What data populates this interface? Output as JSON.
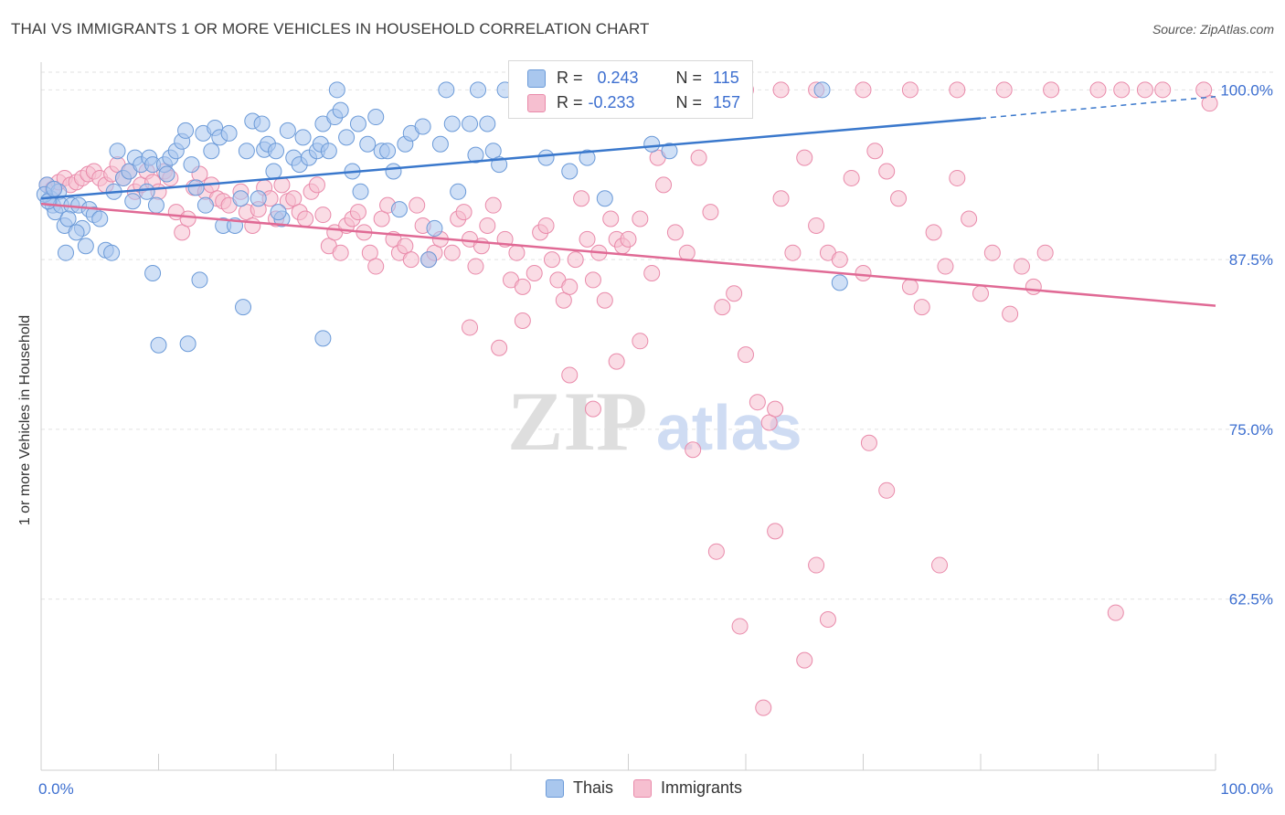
{
  "title": "THAI VS IMMIGRANTS 1 OR MORE VEHICLES IN HOUSEHOLD CORRELATION CHART",
  "source": "Source: ZipAtlas.com",
  "watermark": {
    "zip": "ZIP",
    "atlas": "atlas"
  },
  "colors": {
    "thais_fill": "#a9c7ee",
    "thais_stroke": "#6b9ad8",
    "thais_line": "#3a78cc",
    "imm_fill": "#f6bfd0",
    "imm_stroke": "#e98aaa",
    "imm_line": "#e06a95",
    "axis_text": "#3d6fd0",
    "grid": "#e2e2e2"
  },
  "legend": {
    "r_label": "R =",
    "n_label": "N =",
    "thais": {
      "r": "0.243",
      "n": "115"
    },
    "immigrants": {
      "r": "-0.233",
      "n": "157"
    }
  },
  "bottom_legend": [
    "Thais",
    "Immigrants"
  ],
  "chart_data": {
    "type": "scatter",
    "xlabel": "",
    "ylabel": "1 or more Vehicles in Household",
    "xlim": [
      0,
      100
    ],
    "ylim": [
      49.9,
      101.3
    ],
    "x_tick_labels": [
      "0.0%",
      "100.0%"
    ],
    "y_ticks": [
      62.5,
      75.0,
      87.5,
      100.0
    ],
    "y_tick_labels": [
      "62.5%",
      "75.0%",
      "87.5%",
      "100.0%"
    ],
    "grid": true,
    "series": [
      {
        "name": "Thais",
        "trend": {
          "x": [
            0,
            80,
            100
          ],
          "y": [
            92.0,
            97.9,
            99.5
          ],
          "solid_to": 80
        },
        "points": [
          [
            0.5,
            93.0
          ],
          [
            0.8,
            92.0
          ],
          [
            1.0,
            91.5
          ],
          [
            1.2,
            91.0
          ],
          [
            1.5,
            92.5
          ],
          [
            1.7,
            91.5
          ],
          [
            2.0,
            90.0
          ],
          [
            2.1,
            88.0
          ],
          [
            2.6,
            91.5
          ],
          [
            3.2,
            91.5
          ],
          [
            3.5,
            89.8
          ],
          [
            3.8,
            88.5
          ],
          [
            4.1,
            91.2
          ],
          [
            4.5,
            90.8
          ],
          [
            5.0,
            90.5
          ],
          [
            5.5,
            88.2
          ],
          [
            6.2,
            92.5
          ],
          [
            6.5,
            95.5
          ],
          [
            7.0,
            93.5
          ],
          [
            7.5,
            94.0
          ],
          [
            8.0,
            95.0
          ],
          [
            8.5,
            94.5
          ],
          [
            9.0,
            92.5
          ],
          [
            9.2,
            95.0
          ],
          [
            9.5,
            94.5
          ],
          [
            9.8,
            91.5
          ],
          [
            10.5,
            94.5
          ],
          [
            10.7,
            93.8
          ],
          [
            11.0,
            95.0
          ],
          [
            11.5,
            95.5
          ],
          [
            12.0,
            96.2
          ],
          [
            12.3,
            97.0
          ],
          [
            12.8,
            94.5
          ],
          [
            13.2,
            92.8
          ],
          [
            13.8,
            96.8
          ],
          [
            14.0,
            91.5
          ],
          [
            14.5,
            95.5
          ],
          [
            14.8,
            97.2
          ],
          [
            15.2,
            96.5
          ],
          [
            15.5,
            90.0
          ],
          [
            16.0,
            96.8
          ],
          [
            16.5,
            90.0
          ],
          [
            17.0,
            92.0
          ],
          [
            17.5,
            95.5
          ],
          [
            18.0,
            97.7
          ],
          [
            18.5,
            92.0
          ],
          [
            18.8,
            97.5
          ],
          [
            19.0,
            95.6
          ],
          [
            19.3,
            96.0
          ],
          [
            19.8,
            94.0
          ],
          [
            20.0,
            95.5
          ],
          [
            20.5,
            90.5
          ],
          [
            21.0,
            97.0
          ],
          [
            21.5,
            95.0
          ],
          [
            22.0,
            94.5
          ],
          [
            22.3,
            96.5
          ],
          [
            22.8,
            95.0
          ],
          [
            23.5,
            95.5
          ],
          [
            23.8,
            96.0
          ],
          [
            24.0,
            97.5
          ],
          [
            24.5,
            95.5
          ],
          [
            25.0,
            98.0
          ],
          [
            25.2,
            100.0
          ],
          [
            25.5,
            98.5
          ],
          [
            26.0,
            96.5
          ],
          [
            26.5,
            94.0
          ],
          [
            27.0,
            97.5
          ],
          [
            27.2,
            92.5
          ],
          [
            27.8,
            96.0
          ],
          [
            28.5,
            98.0
          ],
          [
            29.0,
            95.5
          ],
          [
            29.5,
            95.5
          ],
          [
            30.0,
            94.0
          ],
          [
            30.5,
            91.2
          ],
          [
            31.0,
            96.0
          ],
          [
            31.5,
            96.8
          ],
          [
            32.5,
            97.3
          ],
          [
            33.0,
            87.5
          ],
          [
            33.5,
            89.8
          ],
          [
            34.0,
            96.0
          ],
          [
            34.5,
            100.0
          ],
          [
            35.0,
            97.5
          ],
          [
            35.5,
            92.5
          ],
          [
            36.5,
            97.5
          ],
          [
            37.0,
            95.2
          ],
          [
            37.2,
            100.0
          ],
          [
            38.0,
            97.5
          ],
          [
            38.5,
            95.5
          ],
          [
            39.0,
            94.5
          ],
          [
            39.5,
            100.0
          ],
          [
            40.5,
            99.0
          ],
          [
            43.0,
            95.0
          ],
          [
            43.5,
            100.0
          ],
          [
            45.0,
            94.0
          ],
          [
            46.5,
            95.0
          ],
          [
            48.0,
            92.0
          ],
          [
            52.0,
            96.0
          ],
          [
            53.5,
            95.5
          ],
          [
            55.0,
            100.0
          ],
          [
            66.5,
            100.0
          ],
          [
            68.0,
            85.8
          ],
          [
            10.0,
            81.2
          ],
          [
            12.5,
            81.3
          ],
          [
            13.5,
            86.0
          ],
          [
            24.0,
            81.7
          ],
          [
            17.2,
            84.0
          ],
          [
            20.2,
            91.0
          ],
          [
            9.5,
            86.5
          ],
          [
            6.0,
            88.0
          ],
          [
            7.8,
            91.8
          ],
          [
            0.3,
            92.3
          ],
          [
            0.6,
            91.8
          ],
          [
            1.1,
            92.7
          ],
          [
            2.3,
            90.5
          ],
          [
            3.0,
            89.5
          ]
        ]
      },
      {
        "name": "Immigrants",
        "trend": {
          "x": [
            0,
            100
          ],
          "y": [
            91.6,
            84.1
          ]
        },
        "points": [
          [
            0.5,
            93.0
          ],
          [
            1.0,
            92.7
          ],
          [
            1.5,
            93.2
          ],
          [
            2.0,
            93.5
          ],
          [
            2.5,
            93.0
          ],
          [
            3.0,
            93.2
          ],
          [
            3.5,
            93.5
          ],
          [
            4.0,
            93.8
          ],
          [
            4.5,
            94.0
          ],
          [
            5.0,
            93.5
          ],
          [
            5.5,
            93.0
          ],
          [
            6.0,
            93.8
          ],
          [
            6.5,
            94.5
          ],
          [
            7.0,
            93.5
          ],
          [
            7.5,
            94.0
          ],
          [
            8.0,
            92.5
          ],
          [
            8.5,
            93.0
          ],
          [
            9.0,
            94.0
          ],
          [
            9.5,
            93.2
          ],
          [
            10.0,
            92.5
          ],
          [
            10.5,
            94.0
          ],
          [
            11.0,
            93.5
          ],
          [
            11.5,
            91.0
          ],
          [
            12.0,
            89.5
          ],
          [
            12.5,
            90.5
          ],
          [
            13.0,
            92.8
          ],
          [
            13.5,
            93.8
          ],
          [
            14.0,
            92.5
          ],
          [
            14.5,
            93.0
          ],
          [
            15.0,
            92.0
          ],
          [
            15.5,
            91.8
          ],
          [
            16.0,
            91.5
          ],
          [
            17.0,
            92.5
          ],
          [
            17.5,
            91.0
          ],
          [
            18.0,
            90.0
          ],
          [
            18.5,
            91.2
          ],
          [
            19.0,
            92.8
          ],
          [
            19.5,
            92.0
          ],
          [
            20.0,
            90.5
          ],
          [
            20.5,
            93.0
          ],
          [
            21.0,
            91.8
          ],
          [
            21.5,
            92.0
          ],
          [
            22.0,
            91.0
          ],
          [
            22.5,
            90.5
          ],
          [
            23.0,
            92.5
          ],
          [
            23.5,
            93.0
          ],
          [
            24.0,
            90.8
          ],
          [
            24.5,
            88.5
          ],
          [
            25.0,
            89.5
          ],
          [
            25.5,
            88.0
          ],
          [
            26.0,
            90.0
          ],
          [
            26.5,
            90.5
          ],
          [
            27.0,
            91.0
          ],
          [
            27.5,
            89.5
          ],
          [
            28.0,
            88.0
          ],
          [
            28.5,
            87.0
          ],
          [
            29.0,
            90.5
          ],
          [
            29.5,
            91.5
          ],
          [
            30.0,
            89.0
          ],
          [
            30.5,
            88.0
          ],
          [
            31.0,
            88.5
          ],
          [
            31.5,
            87.5
          ],
          [
            32.0,
            91.5
          ],
          [
            32.5,
            90.0
          ],
          [
            33.0,
            87.5
          ],
          [
            33.5,
            88.0
          ],
          [
            34.0,
            89.0
          ],
          [
            35.0,
            88.0
          ],
          [
            35.5,
            90.5
          ],
          [
            36.0,
            91.0
          ],
          [
            36.5,
            89.0
          ],
          [
            37.0,
            87.0
          ],
          [
            37.5,
            88.5
          ],
          [
            38.0,
            90.0
          ],
          [
            38.5,
            91.5
          ],
          [
            39.5,
            89.0
          ],
          [
            40.0,
            86.0
          ],
          [
            40.5,
            88.0
          ],
          [
            41.0,
            85.5
          ],
          [
            42.0,
            86.5
          ],
          [
            42.5,
            89.5
          ],
          [
            43.0,
            90.0
          ],
          [
            43.5,
            87.5
          ],
          [
            44.0,
            86.0
          ],
          [
            44.5,
            84.5
          ],
          [
            45.0,
            85.5
          ],
          [
            45.5,
            87.5
          ],
          [
            46.0,
            92.0
          ],
          [
            46.5,
            89.0
          ],
          [
            47.0,
            86.0
          ],
          [
            47.5,
            88.0
          ],
          [
            48.0,
            84.5
          ],
          [
            48.5,
            90.5
          ],
          [
            49.0,
            89.0
          ],
          [
            49.5,
            88.5
          ],
          [
            50.0,
            89.0
          ],
          [
            51.0,
            90.5
          ],
          [
            52.0,
            86.5
          ],
          [
            52.5,
            95.0
          ],
          [
            53.0,
            93.0
          ],
          [
            54.0,
            89.5
          ],
          [
            55.0,
            88.0
          ],
          [
            56.0,
            95.0
          ],
          [
            57.0,
            91.0
          ],
          [
            58.0,
            84.0
          ],
          [
            59.0,
            85.0
          ],
          [
            60.0,
            80.5
          ],
          [
            61.0,
            77.0
          ],
          [
            62.0,
            75.5
          ],
          [
            62.5,
            76.5
          ],
          [
            63.0,
            92.0
          ],
          [
            64.0,
            88.0
          ],
          [
            65.0,
            95.0
          ],
          [
            66.0,
            90.0
          ],
          [
            67.0,
            88.0
          ],
          [
            68.0,
            87.5
          ],
          [
            69.0,
            93.5
          ],
          [
            70.0,
            86.5
          ],
          [
            71.0,
            95.5
          ],
          [
            72.0,
            94.0
          ],
          [
            73.0,
            92.0
          ],
          [
            74.0,
            85.5
          ],
          [
            75.0,
            84.0
          ],
          [
            76.0,
            89.5
          ],
          [
            77.0,
            87.0
          ],
          [
            78.0,
            93.5
          ],
          [
            79.0,
            90.5
          ],
          [
            80.0,
            85.0
          ],
          [
            81.0,
            88.0
          ],
          [
            82.5,
            83.5
          ],
          [
            83.5,
            87.0
          ],
          [
            84.5,
            85.5
          ],
          [
            85.5,
            88.0
          ],
          [
            36.5,
            82.5
          ],
          [
            39.0,
            81.0
          ],
          [
            41.0,
            83.0
          ],
          [
            45.0,
            79.0
          ],
          [
            47.0,
            76.5
          ],
          [
            49.0,
            80.0
          ],
          [
            51.0,
            81.5
          ],
          [
            55.5,
            73.5
          ],
          [
            57.5,
            66.0
          ],
          [
            59.5,
            60.5
          ],
          [
            61.5,
            54.5
          ],
          [
            62.5,
            67.5
          ],
          [
            65.0,
            58.0
          ],
          [
            66.0,
            65.0
          ],
          [
            67.0,
            61.0
          ],
          [
            70.5,
            74.0
          ],
          [
            72.0,
            70.5
          ],
          [
            76.5,
            65.0
          ],
          [
            91.5,
            61.5
          ],
          [
            99.5,
            99.0
          ],
          [
            90.0,
            100.0
          ],
          [
            86.0,
            100.0
          ],
          [
            82.0,
            100.0
          ],
          [
            78.0,
            100.0
          ],
          [
            74.0,
            100.0
          ],
          [
            70.0,
            100.0
          ],
          [
            66.0,
            100.0
          ],
          [
            63.0,
            100.0
          ],
          [
            60.0,
            100.0
          ],
          [
            58.0,
            100.0
          ],
          [
            99.0,
            100.0
          ],
          [
            95.5,
            100.0
          ],
          [
            94.0,
            100.0
          ],
          [
            92.0,
            100.0
          ]
        ]
      }
    ]
  }
}
